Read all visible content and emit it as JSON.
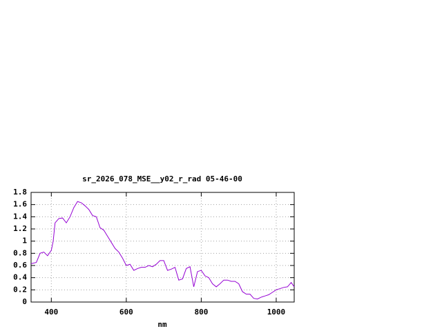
{
  "chart_data": {
    "type": "line",
    "title": "sr_2026_078_MSE__y02_r_rad 05-46-00",
    "xlabel": "nm",
    "x": [
      346,
      360,
      370,
      380,
      390,
      400,
      405,
      410,
      420,
      430,
      440,
      450,
      460,
      470,
      480,
      490,
      500,
      510,
      520,
      530,
      540,
      550,
      560,
      570,
      580,
      590,
      600,
      610,
      620,
      630,
      640,
      650,
      660,
      670,
      680,
      690,
      700,
      710,
      720,
      730,
      740,
      750,
      760,
      770,
      780,
      790,
      800,
      810,
      820,
      830,
      840,
      850,
      860,
      870,
      880,
      890,
      900,
      910,
      920,
      930,
      940,
      950,
      960,
      970,
      980,
      990,
      1000,
      1010,
      1020,
      1030,
      1040,
      1048
    ],
    "series": [
      {
        "color": "#9400d3",
        "values": [
          0.63,
          0.65,
          0.8,
          0.82,
          0.76,
          0.85,
          1.0,
          1.3,
          1.37,
          1.38,
          1.3,
          1.4,
          1.55,
          1.65,
          1.63,
          1.58,
          1.52,
          1.42,
          1.4,
          1.22,
          1.18,
          1.08,
          0.98,
          0.88,
          0.82,
          0.72,
          0.6,
          0.62,
          0.52,
          0.55,
          0.57,
          0.57,
          0.6,
          0.58,
          0.62,
          0.68,
          0.68,
          0.52,
          0.54,
          0.57,
          0.36,
          0.38,
          0.55,
          0.58,
          0.25,
          0.5,
          0.52,
          0.43,
          0.4,
          0.3,
          0.25,
          0.3,
          0.36,
          0.36,
          0.34,
          0.34,
          0.3,
          0.17,
          0.13,
          0.13,
          0.06,
          0.05,
          0.08,
          0.1,
          0.12,
          0.16,
          0.2,
          0.22,
          0.24,
          0.25,
          0.32,
          0.25
        ]
      }
    ],
    "xlim": [
      346,
      1048
    ],
    "xticks": [
      400,
      600,
      800,
      1000
    ],
    "ylim": [
      0,
      1.8
    ],
    "yticks": [
      0,
      0.2,
      0.4,
      0.6,
      0.8,
      1,
      1.2,
      1.4,
      1.6,
      1.8
    ],
    "grid": true
  }
}
